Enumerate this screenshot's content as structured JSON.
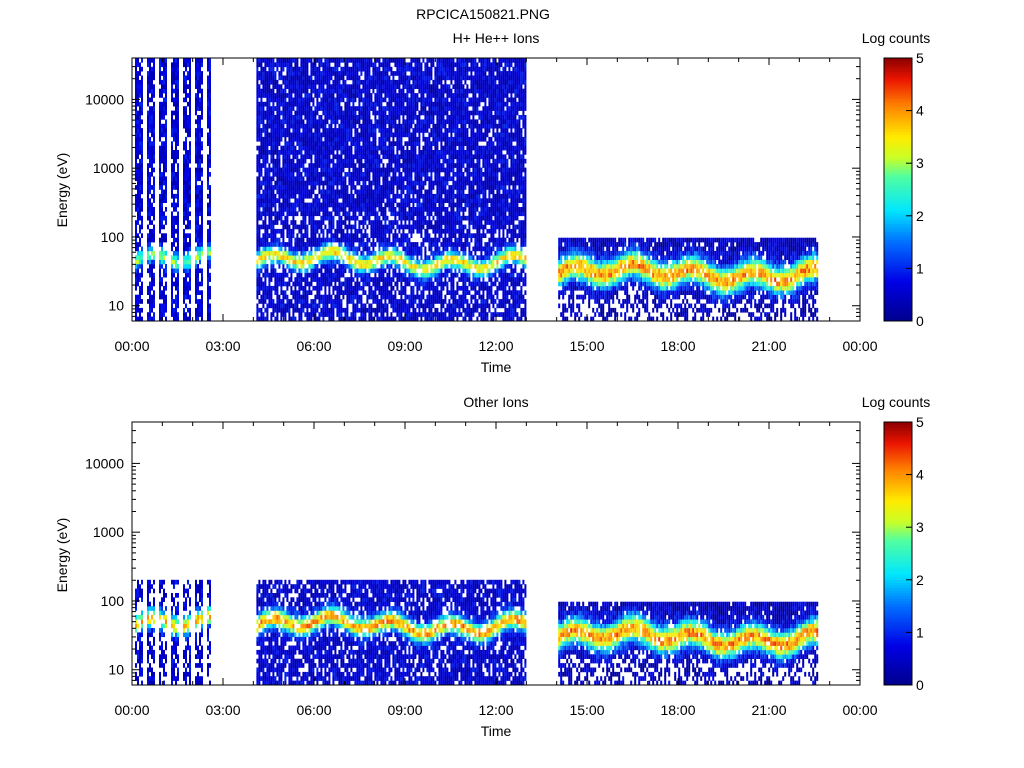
{
  "page_title": "RPCICA150821.PNG",
  "chart_data": [
    {
      "type": "heatmap",
      "title": "H+ He++ Ions",
      "xlabel": "Time",
      "ylabel": "Energy (eV)",
      "yscale": "log",
      "xlim": [
        "00:00",
        "24:00"
      ],
      "ylim": [
        6,
        40000
      ],
      "x_ticks": [
        "00:00",
        "03:00",
        "06:00",
        "09:00",
        "12:00",
        "15:00",
        "18:00",
        "21:00",
        "00:00"
      ],
      "y_ticks": [
        "10",
        "100",
        "1000",
        "10000"
      ],
      "colorbar": {
        "label": "Log counts",
        "range": [
          0,
          5
        ],
        "ticks": [
          "0",
          "1",
          "2",
          "3",
          "4",
          "5"
        ]
      },
      "data_intervals": [
        {
          "start_hour": 0.1,
          "end_hour": 2.6,
          "emax": 40000,
          "pattern": "striped",
          "peak_energy": 45,
          "peak_level": 2.3
        },
        {
          "start_hour": 4.1,
          "end_hour": 12.95,
          "emax": 40000,
          "pattern": "dense",
          "peak_energy": 45,
          "peak_level": 3.0
        },
        {
          "start_hour": 14.05,
          "end_hour": 22.6,
          "emax": 100,
          "pattern": "band",
          "peak_energy": 30,
          "peak_level": 3.6
        }
      ]
    },
    {
      "type": "heatmap",
      "title": "Other Ions",
      "xlabel": "Time",
      "ylabel": "Energy (eV)",
      "yscale": "log",
      "xlim": [
        "00:00",
        "24:00"
      ],
      "ylim": [
        6,
        40000
      ],
      "x_ticks": [
        "00:00",
        "03:00",
        "06:00",
        "09:00",
        "12:00",
        "15:00",
        "18:00",
        "21:00",
        "00:00"
      ],
      "y_ticks": [
        "10",
        "100",
        "1000",
        "10000"
      ],
      "colorbar": {
        "label": "Log counts",
        "range": [
          0,
          5
        ],
        "ticks": [
          "0",
          "1",
          "2",
          "3",
          "4",
          "5"
        ]
      },
      "data_intervals": [
        {
          "start_hour": 0.1,
          "end_hour": 2.6,
          "emax": 200,
          "pattern": "striped-sparse",
          "peak_energy": 45,
          "peak_level": 3.2
        },
        {
          "start_hour": 4.1,
          "end_hour": 12.95,
          "emax": 200,
          "pattern": "sparse-high",
          "peak_energy": 45,
          "peak_level": 3.4
        },
        {
          "start_hour": 14.05,
          "end_hour": 22.6,
          "emax": 100,
          "pattern": "band",
          "peak_energy": 30,
          "peak_level": 3.6
        }
      ]
    }
  ]
}
